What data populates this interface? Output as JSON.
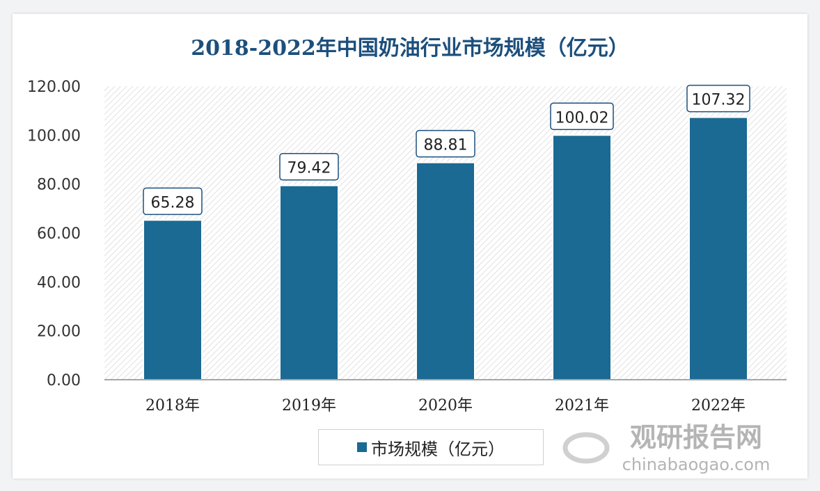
{
  "chart_data": {
    "type": "bar",
    "title": "2018-2022年中国奶油行业市场规模（亿元）",
    "categories": [
      "2018年",
      "2019年",
      "2020年",
      "2021年",
      "2022年"
    ],
    "series": [
      {
        "name": "市场规模（亿元）",
        "values": [
          65.28,
          79.42,
          88.81,
          100.02,
          107.32
        ]
      }
    ],
    "data_labels": [
      "65.28",
      "79.42",
      "88.81",
      "100.02",
      "107.32"
    ],
    "y_ticks": [
      "0.00",
      "20.00",
      "40.00",
      "60.00",
      "80.00",
      "100.00",
      "120.00"
    ],
    "ylim": [
      0,
      120
    ],
    "xlabel": "",
    "ylabel": "",
    "legend_position": "bottom",
    "grid": false,
    "colors": {
      "bar": "#1a6a93",
      "label_border": "#1c4f7c",
      "title": "#1c4f7c"
    }
  },
  "watermark": {
    "cn": "观研报告网",
    "en": "chinabaogao.com"
  }
}
